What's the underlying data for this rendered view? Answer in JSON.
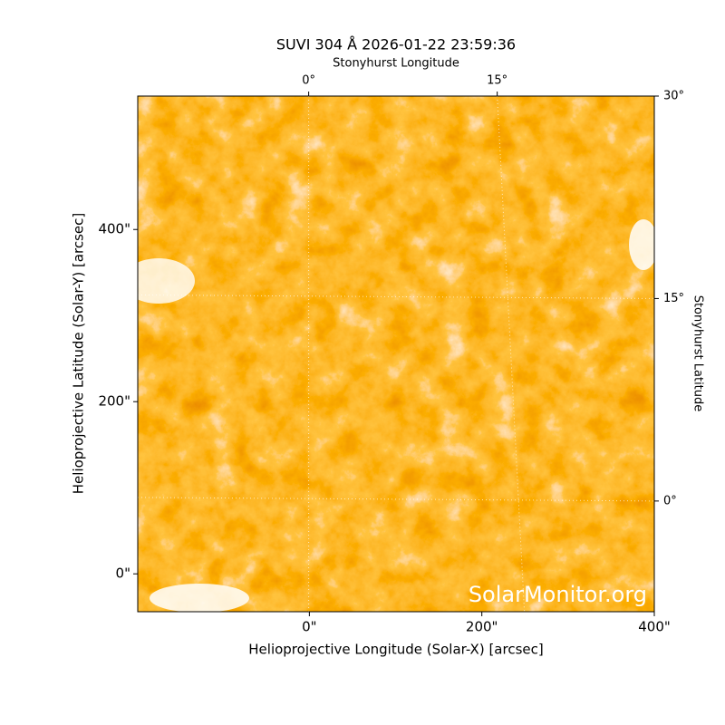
{
  "chart_data": {
    "type": "image",
    "title": "SUVI 304 Å 2026-01-22 23:59:36",
    "xlabel": "Helioprojective Longitude (Solar-X) [arcsec]",
    "ylabel": "Helioprojective Latitude (Solar-Y) [arcsec]",
    "x2label": "Stonyhurst Longitude",
    "y2label": "Stonyhurst Latitude",
    "watermark": "SolarMonitor.org",
    "xlim": [
      -199,
      400
    ],
    "ylim": [
      -44,
      555
    ],
    "xticks": [
      {
        "value": 0,
        "label": "0\""
      },
      {
        "value": 200,
        "label": "200\""
      },
      {
        "value": 400,
        "label": "400\""
      }
    ],
    "yticks": [
      {
        "value": 0,
        "label": "0\""
      },
      {
        "value": 200,
        "label": "200\""
      },
      {
        "value": 400,
        "label": "400\""
      }
    ],
    "x2lim": [
      -13.6,
      27.5
    ],
    "y2lim": [
      -8.2,
      30
    ],
    "x2ticks": [
      {
        "value": 0,
        "label": "0°"
      },
      {
        "value": 15,
        "label": "15°"
      }
    ],
    "y2ticks": [
      {
        "value": 0,
        "label": "0°"
      },
      {
        "value": 15,
        "label": "15°"
      },
      {
        "value": 30,
        "label": "30°"
      }
    ]
  }
}
